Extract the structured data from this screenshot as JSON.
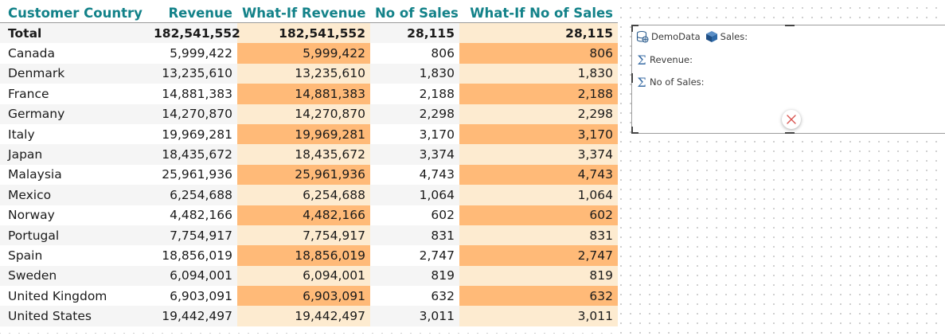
{
  "matrix": {
    "headers": [
      "Customer Country",
      "Revenue",
      "What-If Revenue",
      "No of Sales",
      "What-If No of Sales"
    ],
    "total": {
      "label": "Total",
      "revenue": "182,541,552",
      "whatif_revenue": "182,541,552",
      "sales": "28,115",
      "whatif_sales": "28,115"
    },
    "rows": [
      {
        "country": "Canada",
        "revenue": "5,999,422",
        "whatif_revenue": "5,999,422",
        "sales": "806",
        "whatif_sales": "806"
      },
      {
        "country": "Denmark",
        "revenue": "13,235,610",
        "whatif_revenue": "13,235,610",
        "sales": "1,830",
        "whatif_sales": "1,830"
      },
      {
        "country": "France",
        "revenue": "14,881,383",
        "whatif_revenue": "14,881,383",
        "sales": "2,188",
        "whatif_sales": "2,188"
      },
      {
        "country": "Germany",
        "revenue": "14,270,870",
        "whatif_revenue": "14,270,870",
        "sales": "2,298",
        "whatif_sales": "2,298"
      },
      {
        "country": "Italy",
        "revenue": "19,969,281",
        "whatif_revenue": "19,969,281",
        "sales": "3,170",
        "whatif_sales": "3,170"
      },
      {
        "country": "Japan",
        "revenue": "18,435,672",
        "whatif_revenue": "18,435,672",
        "sales": "3,374",
        "whatif_sales": "3,374"
      },
      {
        "country": "Malaysia",
        "revenue": "25,961,936",
        "whatif_revenue": "25,961,936",
        "sales": "4,743",
        "whatif_sales": "4,743"
      },
      {
        "country": "Mexico",
        "revenue": "6,254,688",
        "whatif_revenue": "6,254,688",
        "sales": "1,064",
        "whatif_sales": "1,064"
      },
      {
        "country": "Norway",
        "revenue": "4,482,166",
        "whatif_revenue": "4,482,166",
        "sales": "602",
        "whatif_sales": "602"
      },
      {
        "country": "Portugal",
        "revenue": "7,754,917",
        "whatif_revenue": "7,754,917",
        "sales": "831",
        "whatif_sales": "831"
      },
      {
        "country": "Spain",
        "revenue": "18,856,019",
        "whatif_revenue": "18,856,019",
        "sales": "2,747",
        "whatif_sales": "2,747"
      },
      {
        "country": "Sweden",
        "revenue": "6,094,001",
        "whatif_revenue": "6,094,001",
        "sales": "819",
        "whatif_sales": "819"
      },
      {
        "country": "United Kingdom",
        "revenue": "6,903,091",
        "whatif_revenue": "6,903,091",
        "sales": "632",
        "whatif_sales": "632"
      },
      {
        "country": "United States",
        "revenue": "19,442,497",
        "whatif_revenue": "19,442,497",
        "sales": "3,011",
        "whatif_sales": "3,011"
      }
    ]
  },
  "field_well": {
    "source": "DemoData",
    "table": "Sales:",
    "measures": [
      "Revenue:",
      "No of Sales:"
    ]
  },
  "icons": {
    "source": "database-globe-icon",
    "table": "cube-icon",
    "measure": "sigma-icon",
    "delete": "close-icon"
  },
  "colors": {
    "header_text": "#138289",
    "highlight_strong": "#ffba78",
    "highlight_light": "#fdebd0",
    "row_stripe": "#f5f5f5",
    "delete_x": "#d9534f"
  }
}
